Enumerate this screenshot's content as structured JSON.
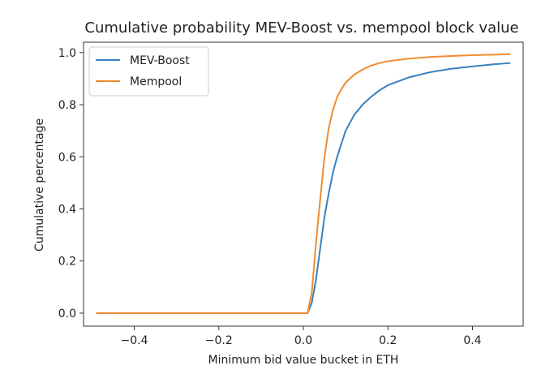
{
  "chart_data": {
    "type": "line",
    "title": "Cumulative probability MEV-Boost vs. mempool block value",
    "xlabel": "Minimum bid value bucket in ETH",
    "ylabel": "Cumulative percentage",
    "xlim": [
      -0.52,
      0.52
    ],
    "ylim": [
      -0.05,
      1.04
    ],
    "xticks": [
      -0.4,
      -0.2,
      0.0,
      0.2,
      0.4
    ],
    "xtick_labels": [
      "−0.4",
      "−0.2",
      "0.0",
      "0.2",
      "0.4"
    ],
    "yticks": [
      0.0,
      0.2,
      0.4,
      0.6,
      0.8,
      1.0
    ],
    "ytick_labels": [
      "0.0",
      "0.2",
      "0.4",
      "0.6",
      "0.8",
      "1.0"
    ],
    "grid": false,
    "legend_position": "upper-left",
    "series": [
      {
        "name": "MEV-Boost",
        "color": "#3a7fc1",
        "x": [
          -0.49,
          0.0,
          0.01,
          0.02,
          0.03,
          0.04,
          0.05,
          0.06,
          0.07,
          0.08,
          0.09,
          0.1,
          0.12,
          0.14,
          0.16,
          0.18,
          0.2,
          0.25,
          0.3,
          0.35,
          0.4,
          0.45,
          0.49
        ],
        "y": [
          0.0,
          0.0,
          0.0,
          0.04,
          0.13,
          0.25,
          0.37,
          0.46,
          0.54,
          0.6,
          0.65,
          0.7,
          0.76,
          0.8,
          0.83,
          0.855,
          0.875,
          0.905,
          0.925,
          0.938,
          0.947,
          0.955,
          0.96
        ]
      },
      {
        "name": "Mempool",
        "color": "#f08c30",
        "x": [
          -0.49,
          0.0,
          0.01,
          0.02,
          0.03,
          0.04,
          0.05,
          0.06,
          0.07,
          0.08,
          0.09,
          0.1,
          0.12,
          0.14,
          0.16,
          0.18,
          0.2,
          0.25,
          0.3,
          0.35,
          0.4,
          0.45,
          0.49
        ],
        "y": [
          0.0,
          0.0,
          0.0,
          0.08,
          0.27,
          0.44,
          0.6,
          0.71,
          0.78,
          0.83,
          0.86,
          0.885,
          0.915,
          0.935,
          0.95,
          0.96,
          0.967,
          0.977,
          0.983,
          0.987,
          0.99,
          0.992,
          0.994
        ]
      }
    ]
  }
}
